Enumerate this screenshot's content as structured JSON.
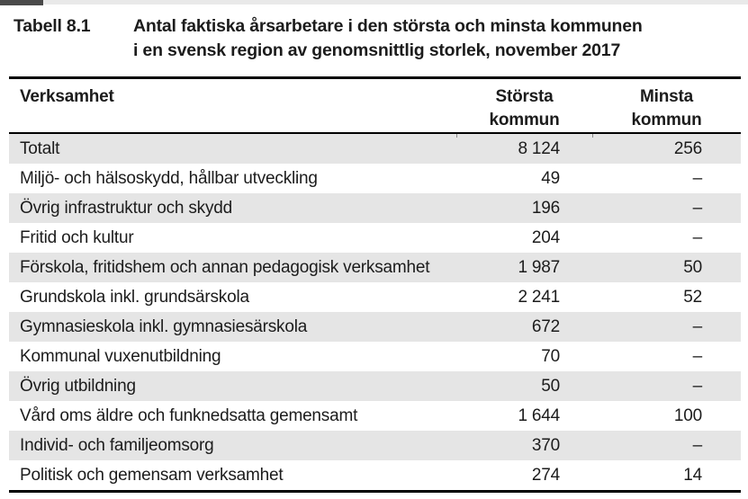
{
  "colors": {
    "page-bg": "#ffffff",
    "text": "#1c1c1c",
    "rule": "#000000",
    "row-shaded": "#e5e5e5",
    "row-plain": "#ffffff",
    "top-strip": "#e9e9e9",
    "top-strip-dark": "#4a4a4a",
    "tick": "#8a8a8a"
  },
  "table": {
    "label": "Tabell 8.1",
    "title_line1": "Antal faktiska årsarbetare i den största och minsta kommunen",
    "title_line2": "i en svensk region av genomsnittlig storlek, november 2017",
    "header": {
      "activity": "Verksamhet",
      "largest_line1": "Största",
      "largest_line2": "kommun",
      "smallest_line1": "Minsta",
      "smallest_line2": "kommun"
    },
    "rows": [
      {
        "label": "Totalt",
        "largest": "8 124",
        "smallest": "256"
      },
      {
        "label": "Miljö- och hälsoskydd, hållbar utveckling",
        "largest": "49",
        "smallest": "–"
      },
      {
        "label": "Övrig infrastruktur och skydd",
        "largest": "196",
        "smallest": "–"
      },
      {
        "label": "Fritid och kultur",
        "largest": "204",
        "smallest": "–"
      },
      {
        "label": "Förskola, fritidshem och annan pedagogisk verksamhet",
        "largest": "1 987",
        "smallest": "50"
      },
      {
        "label": "Grundskola inkl. grundsärskola",
        "largest": "2 241",
        "smallest": "52"
      },
      {
        "label": "Gymnasieskola inkl. gymnasiesärskola",
        "largest": "672",
        "smallest": "–"
      },
      {
        "label": "Kommunal vuxenutbildning",
        "largest": "70",
        "smallest": "–"
      },
      {
        "label": "Övrig utbildning",
        "largest": "50",
        "smallest": "–"
      },
      {
        "label": "Vård oms äldre och funknedsatta gemensamt",
        "largest": "1 644",
        "smallest": "100"
      },
      {
        "label": "Individ- och familjeomsorg",
        "largest": "370",
        "smallest": "–"
      },
      {
        "label": "Politisk och gemensam verksamhet",
        "largest": "274",
        "smallest": "14"
      }
    ]
  }
}
